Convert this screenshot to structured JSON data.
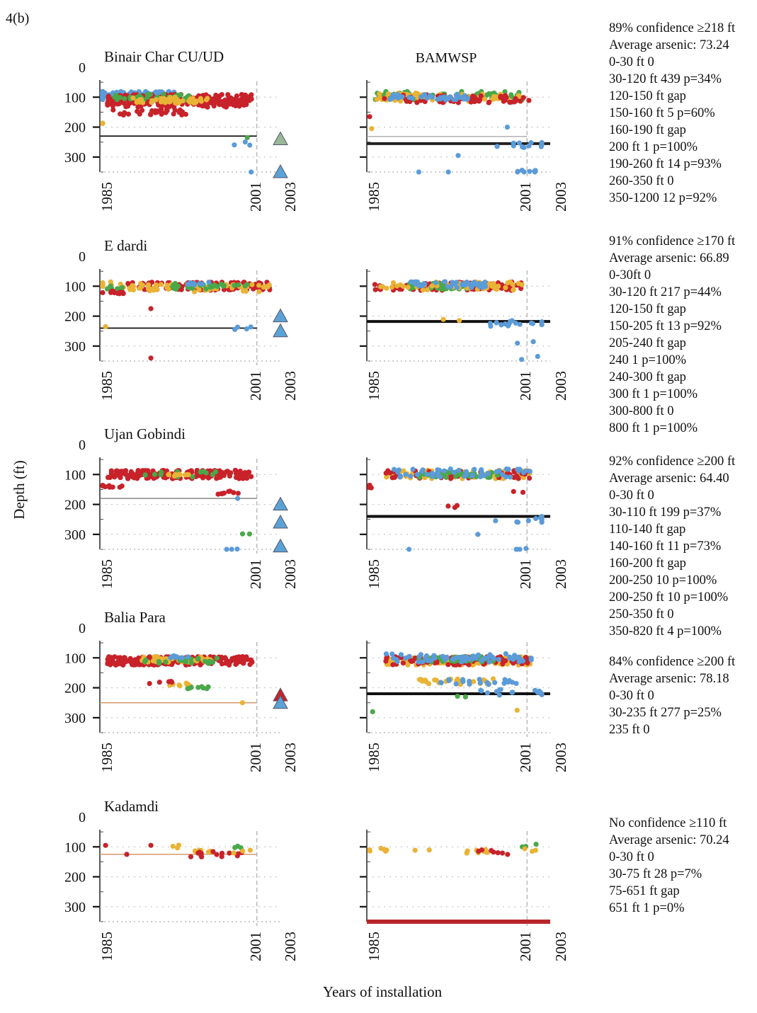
{
  "figure_label": "4(b)",
  "y_axis_label": "Depth (ft)",
  "x_axis_label": "Years of installation",
  "right_column_title": "BAMWSP",
  "colors": {
    "red": "#c8222a",
    "yellow": "#e9b336",
    "green": "#4aa84a",
    "blue": "#5b9bd8",
    "tri_blue": "#5ba3d6",
    "tri_green": "#9ab89a",
    "tri_red": "#c8222a",
    "line_black": "#111111",
    "line_gray": "#888888",
    "line_tan": "#d49a6a"
  },
  "chart_data": [
    {
      "type": "scatter",
      "name": "Binair Char CU/UD",
      "panel": "left",
      "title": "Binair Char CU/UD",
      "ylim": [
        0,
        350
      ],
      "yticks": [
        "0",
        "100",
        "200",
        "300"
      ],
      "xticks": [
        "1985",
        "2001",
        "2003"
      ],
      "xlim": [
        1985,
        2003
      ],
      "threshold": {
        "depth": 230,
        "style": "black"
      },
      "triangles": [
        {
          "x": 2003,
          "y": 240,
          "c": "tri_green"
        },
        {
          "x": 2003,
          "y": 350,
          "c": "tri_blue"
        }
      ],
      "points": [
        {
          "x": 1985,
          "y": 95,
          "c": "blue",
          "n": 260
        },
        {
          "x": 1993,
          "y": 105,
          "c": "red",
          "n": 150
        },
        {
          "x": 1993,
          "y": 120,
          "c": "red",
          "n": 120
        },
        {
          "x": 1990,
          "y": 100,
          "c": "green",
          "n": 40
        },
        {
          "x": 1992,
          "y": 110,
          "c": "yellow",
          "n": 40
        },
        {
          "x": 1990,
          "y": 150,
          "c": "red",
          "n": 30
        },
        {
          "x": 1985.3,
          "y": 190,
          "c": "yellow",
          "n": 2
        },
        {
          "x": 2000,
          "y": 235,
          "c": "green",
          "n": 1
        },
        {
          "x": 1999.8,
          "y": 255,
          "c": "blue",
          "n": 3
        },
        {
          "x": 2000.4,
          "y": 350,
          "c": "blue",
          "n": 1
        }
      ]
    },
    {
      "type": "scatter",
      "name": "Binair Char CU/UD",
      "panel": "right",
      "ylim": [
        0,
        350
      ],
      "xticks": [
        "1985",
        "2001",
        "2003"
      ],
      "xlim": [
        1985,
        2003
      ],
      "threshold": {
        "depth": 255,
        "style": "thickgray"
      },
      "points": [
        {
          "x": 1993,
          "y": 95,
          "c": "green",
          "n": 60
        },
        {
          "x": 1993,
          "y": 100,
          "c": "yellow",
          "n": 70
        },
        {
          "x": 1994,
          "y": 105,
          "c": "red",
          "n": 60
        },
        {
          "x": 1991,
          "y": 100,
          "c": "blue",
          "n": 40
        },
        {
          "x": 1985,
          "y": 165,
          "c": "red",
          "n": 1
        },
        {
          "x": 1985.2,
          "y": 205,
          "c": "yellow",
          "n": 1
        },
        {
          "x": 1999,
          "y": 200,
          "c": "blue",
          "n": 1
        },
        {
          "x": 2001,
          "y": 260,
          "c": "blue",
          "n": 12
        },
        {
          "x": 2001,
          "y": 350,
          "c": "blue",
          "n": 8
        },
        {
          "x": 1994,
          "y": 295,
          "c": "blue",
          "n": 1
        },
        {
          "x": 1993,
          "y": 350,
          "c": "blue",
          "n": 1
        },
        {
          "x": 1990,
          "y": 350,
          "c": "blue",
          "n": 1
        }
      ]
    },
    {
      "type": "scatter",
      "name": "E dardi",
      "panel": "left",
      "title": "E  dardi",
      "ylim": [
        0,
        350
      ],
      "yticks": [
        "0",
        "100",
        "200",
        "300"
      ],
      "xticks": [
        "1985",
        "2001",
        "2003"
      ],
      "xlim": [
        1985,
        2003
      ],
      "threshold": {
        "depth": 240,
        "style": "black"
      },
      "triangles": [
        {
          "x": 2003,
          "y": 200,
          "c": "tri_blue"
        },
        {
          "x": 2003,
          "y": 250,
          "c": "tri_blue"
        }
      ],
      "points": [
        {
          "x": 1986,
          "y": 95,
          "c": "yellow",
          "n": 15
        },
        {
          "x": 1986,
          "y": 105,
          "c": "green",
          "n": 8
        },
        {
          "x": 1986,
          "y": 120,
          "c": "red",
          "n": 10
        },
        {
          "x": 1995,
          "y": 100,
          "c": "red",
          "n": 120
        },
        {
          "x": 1995,
          "y": 105,
          "c": "yellow",
          "n": 60
        },
        {
          "x": 1996,
          "y": 100,
          "c": "green",
          "n": 25
        },
        {
          "x": 1995,
          "y": 90,
          "c": "blue",
          "n": 10
        },
        {
          "x": 1985.3,
          "y": 235,
          "c": "yellow",
          "n": 1
        },
        {
          "x": 1990,
          "y": 175,
          "c": "red",
          "n": 1
        },
        {
          "x": 1999.5,
          "y": 240,
          "c": "blue",
          "n": 4
        },
        {
          "x": 1990,
          "y": 340,
          "c": "red",
          "n": 1
        }
      ]
    },
    {
      "type": "scatter",
      "name": "E dardi",
      "panel": "right",
      "ylim": [
        0,
        350
      ],
      "xticks": [
        "1985",
        "2001",
        "2003"
      ],
      "xlim": [
        1985,
        2003
      ],
      "threshold": {
        "depth": 218,
        "style": "thickblack"
      },
      "points": [
        {
          "x": 1993,
          "y": 100,
          "c": "red",
          "n": 90
        },
        {
          "x": 1993,
          "y": 100,
          "c": "green",
          "n": 40
        },
        {
          "x": 1993,
          "y": 100,
          "c": "yellow",
          "n": 50
        },
        {
          "x": 1993,
          "y": 95,
          "c": "blue",
          "n": 40
        },
        {
          "x": 1999,
          "y": 225,
          "c": "blue",
          "n": 18
        },
        {
          "x": 1993,
          "y": 215,
          "c": "yellow",
          "n": 2
        },
        {
          "x": 2001,
          "y": 290,
          "c": "blue",
          "n": 2
        },
        {
          "x": 2001,
          "y": 340,
          "c": "blue",
          "n": 2
        }
      ]
    },
    {
      "type": "scatter",
      "name": "Ujan Gobindi",
      "panel": "left",
      "title": "Ujan Gobindi",
      "ylim": [
        0,
        350
      ],
      "yticks": [
        "0",
        "100",
        "200",
        "300"
      ],
      "xticks": [
        "1985",
        "2001",
        "2003"
      ],
      "xlim": [
        1985,
        2003
      ],
      "threshold": {
        "depth": 180,
        "style": "gray"
      },
      "triangles": [
        {
          "x": 2003,
          "y": 200,
          "c": "tri_blue"
        },
        {
          "x": 2003,
          "y": 260,
          "c": "tri_blue"
        },
        {
          "x": 2003,
          "y": 340,
          "c": "tri_blue"
        }
      ],
      "points": [
        {
          "x": 1993,
          "y": 100,
          "c": "red",
          "n": 170
        },
        {
          "x": 1993,
          "y": 100,
          "c": "green",
          "n": 12
        },
        {
          "x": 1993,
          "y": 100,
          "c": "yellow",
          "n": 10
        },
        {
          "x": 1986,
          "y": 140,
          "c": "red",
          "n": 10
        },
        {
          "x": 1998,
          "y": 160,
          "c": "red",
          "n": 8
        },
        {
          "x": 1999,
          "y": 180,
          "c": "blue",
          "n": 1
        },
        {
          "x": 2000,
          "y": 300,
          "c": "green",
          "n": 2
        },
        {
          "x": 1998.5,
          "y": 350,
          "c": "blue",
          "n": 3
        }
      ]
    },
    {
      "type": "scatter",
      "name": "Ujan Gobindi",
      "panel": "right",
      "ylim": [
        0,
        350
      ],
      "xticks": [
        "1985",
        "2001",
        "2003"
      ],
      "xlim": [
        1985,
        2003
      ],
      "threshold": {
        "depth": 240,
        "style": "thickblack"
      },
      "points": [
        {
          "x": 1994,
          "y": 100,
          "c": "yellow",
          "n": 60
        },
        {
          "x": 1994,
          "y": 100,
          "c": "red",
          "n": 50
        },
        {
          "x": 1994,
          "y": 100,
          "c": "green",
          "n": 40
        },
        {
          "x": 1994,
          "y": 95,
          "c": "blue",
          "n": 50
        },
        {
          "x": 1985,
          "y": 140,
          "c": "red",
          "n": 5
        },
        {
          "x": 1994,
          "y": 205,
          "c": "red",
          "n": 3
        },
        {
          "x": 2000,
          "y": 160,
          "c": "red",
          "n": 2
        },
        {
          "x": 2001,
          "y": 250,
          "c": "blue",
          "n": 14
        },
        {
          "x": 2001,
          "y": 350,
          "c": "blue",
          "n": 4
        },
        {
          "x": 1989,
          "y": 350,
          "c": "blue",
          "n": 1
        },
        {
          "x": 1996,
          "y": 300,
          "c": "blue",
          "n": 1
        }
      ]
    },
    {
      "type": "scatter",
      "name": "Balia Para",
      "panel": "left",
      "title": "Balia Para",
      "ylim": [
        0,
        350
      ],
      "yticks": [
        "0",
        "100",
        "200",
        "300"
      ],
      "xticks": [
        "1985",
        "2001",
        "2003"
      ],
      "xlim": [
        1985,
        2003
      ],
      "threshold": {
        "depth": 250,
        "style": "tan"
      },
      "triangles": [
        {
          "x": 2003,
          "y": 225,
          "c": "tri_red"
        },
        {
          "x": 2003,
          "y": 250,
          "c": "tri_blue"
        }
      ],
      "points": [
        {
          "x": 1993,
          "y": 110,
          "c": "red",
          "n": 220
        },
        {
          "x": 1993,
          "y": 105,
          "c": "yellow",
          "n": 40
        },
        {
          "x": 1993,
          "y": 110,
          "c": "green",
          "n": 20
        },
        {
          "x": 1993,
          "y": 95,
          "c": "blue",
          "n": 8
        },
        {
          "x": 1993,
          "y": 190,
          "c": "yellow",
          "n": 10
        },
        {
          "x": 1995,
          "y": 200,
          "c": "green",
          "n": 8
        },
        {
          "x": 1991,
          "y": 180,
          "c": "red",
          "n": 5
        },
        {
          "x": 1999.5,
          "y": 250,
          "c": "yellow",
          "n": 1
        }
      ]
    },
    {
      "type": "scatter",
      "name": "Balia Para",
      "panel": "right",
      "ylim": [
        0,
        350
      ],
      "xticks": [
        "1985",
        "2001",
        "2003"
      ],
      "xlim": [
        1985,
        2003
      ],
      "threshold": {
        "depth": 220,
        "style": "thickblack"
      },
      "points": [
        {
          "x": 1994,
          "y": 110,
          "c": "yellow",
          "n": 150
        },
        {
          "x": 1994,
          "y": 110,
          "c": "red",
          "n": 80
        },
        {
          "x": 1994,
          "y": 105,
          "c": "green",
          "n": 40
        },
        {
          "x": 1994,
          "y": 100,
          "c": "blue",
          "n": 60
        },
        {
          "x": 1994,
          "y": 180,
          "c": "yellow",
          "n": 25
        },
        {
          "x": 1996,
          "y": 180,
          "c": "blue",
          "n": 20
        },
        {
          "x": 2000,
          "y": 215,
          "c": "blue",
          "n": 15
        },
        {
          "x": 1985.3,
          "y": 280,
          "c": "green",
          "n": 1
        },
        {
          "x": 1995,
          "y": 230,
          "c": "green",
          "n": 2
        },
        {
          "x": 2000,
          "y": 275,
          "c": "yellow",
          "n": 1
        }
      ]
    },
    {
      "type": "scatter",
      "name": "Kadamdi",
      "panel": "left",
      "title": "Kadamdi",
      "ylim": [
        0,
        350
      ],
      "yticks": [
        "0",
        "100",
        "200",
        "300"
      ],
      "xticks": [
        "1985",
        "2001",
        "2003"
      ],
      "xlim": [
        1985,
        2003
      ],
      "threshold": {
        "depth": 125,
        "style": "tan"
      },
      "points": [
        {
          "x": 1985.3,
          "y": 95,
          "c": "red",
          "n": 1
        },
        {
          "x": 1987.5,
          "y": 125,
          "c": "red",
          "n": 1
        },
        {
          "x": 1990,
          "y": 95,
          "c": "red",
          "n": 1
        },
        {
          "x": 1991.8,
          "y": 100,
          "c": "yellow",
          "n": 3
        },
        {
          "x": 1995,
          "y": 115,
          "c": "yellow",
          "n": 6
        },
        {
          "x": 1997,
          "y": 125,
          "c": "red",
          "n": 14
        },
        {
          "x": 1999,
          "y": 100,
          "c": "green",
          "n": 3
        },
        {
          "x": 1999.5,
          "y": 115,
          "c": "yellow",
          "n": 3
        }
      ]
    },
    {
      "type": "scatter",
      "name": "Kadamdi",
      "panel": "right",
      "ylim": [
        0,
        350
      ],
      "xticks": [
        "1985",
        "2001",
        "2003"
      ],
      "xlim": [
        1985,
        2003
      ],
      "threshold": {
        "depth": 350,
        "style": "red"
      },
      "points": [
        {
          "x": 1985.5,
          "y": 110,
          "c": "yellow",
          "n": 4
        },
        {
          "x": 1987,
          "y": 115,
          "c": "yellow",
          "n": 2
        },
        {
          "x": 1990,
          "y": 110,
          "c": "yellow",
          "n": 2
        },
        {
          "x": 1996,
          "y": 115,
          "c": "yellow",
          "n": 10
        },
        {
          "x": 1997,
          "y": 115,
          "c": "red",
          "n": 5
        },
        {
          "x": 1999.5,
          "y": 120,
          "c": "red",
          "n": 2
        },
        {
          "x": 2001.5,
          "y": 95,
          "c": "green",
          "n": 3
        },
        {
          "x": 2001.5,
          "y": 110,
          "c": "yellow",
          "n": 3
        }
      ]
    }
  ],
  "stats": [
    {
      "lines": [
        "89% confidence ≥218 ft",
        "Average arsenic: 73.24",
        "0-30 ft  0",
        "30-120 ft  439  p=34%",
        "120-150 ft gap",
        "150-160 ft  5  p=60%",
        "160-190 ft gap",
        "200 ft  1  p=100%",
        "190-260 ft  14  p=93%",
        "260-350 ft  0",
        "350-1200  12  p=92%"
      ]
    },
    {
      "lines": [
        "91% confidence ≥170 ft",
        "Average arsenic: 66.89",
        "0-30ft  0",
        "30-120 ft  217  p=44%",
        "120-150 ft gap",
        "150-205 ft  13  p=92%",
        "205-240 ft gap",
        "240  1  p=100%",
        "240-300 ft  gap",
        "300 ft  1  p=100%",
        "300-800 ft  0",
        "800 ft  1  p=100%"
      ]
    },
    {
      "lines": [
        "92% confidence ≥200 ft",
        "Average arsenic: 64.40",
        "0-30 ft  0",
        "30-110 ft  199  p=37%",
        "110-140 ft gap",
        "140-160 ft  11  p=73%",
        "160-200 ft gap",
        "200-250  10  p=100%",
        "200-250 ft  10  p=100%",
        "250-350 ft  0",
        "350-820 ft  4  p=100%"
      ]
    },
    {
      "lines": [
        "84% confidence ≥200 ft",
        "Average arsenic: 78.18",
        "0-30 ft  0",
        "30-235 ft  277  p=25%",
        "235 ft  0"
      ]
    },
    {
      "lines": [
        "No confidence ≥110 ft",
        "Average arsenic: 70.24",
        "0-30 ft  0",
        "30-75 ft  28  p=7%",
        "75-651 ft gap",
        "651 ft  1  p=0%"
      ]
    }
  ]
}
